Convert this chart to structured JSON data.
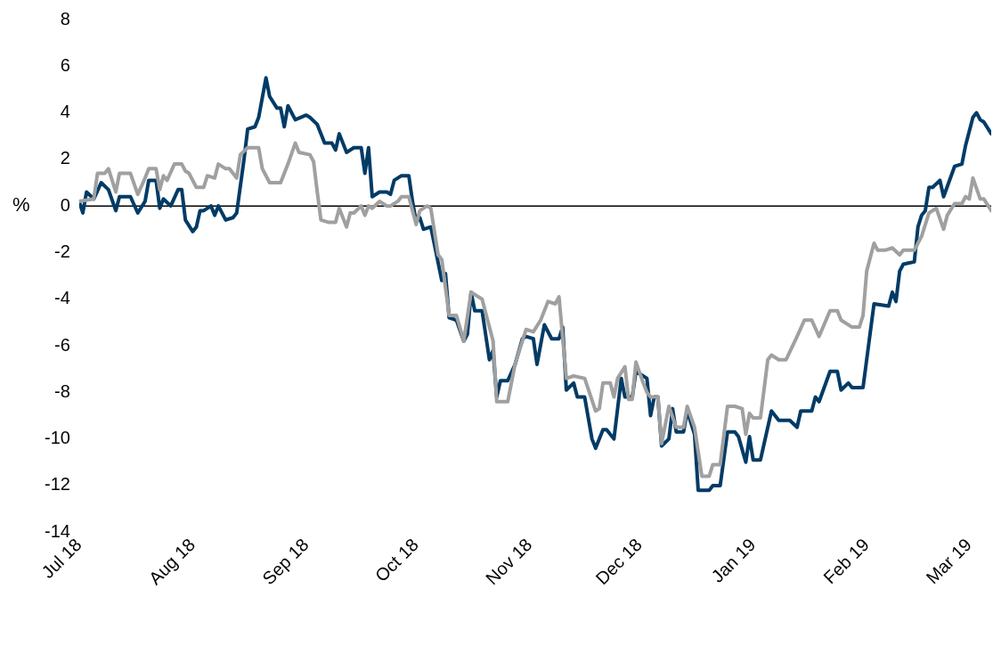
{
  "chart_data": {
    "type": "line",
    "ylabel": "%",
    "xlim": [
      "2018-07-01",
      "2019-03-07"
    ],
    "xticks": [
      {
        "value": "2018-07-01",
        "label": "Jul 18"
      },
      {
        "value": "2018-08-01",
        "label": "Aug 18"
      },
      {
        "value": "2018-09-01",
        "label": "Sep 18"
      },
      {
        "value": "2018-10-01",
        "label": "Oct 18"
      },
      {
        "value": "2018-11-01",
        "label": "Nov 18"
      },
      {
        "value": "2018-12-01",
        "label": "Dec 18"
      },
      {
        "value": "2019-01-01",
        "label": "Jan 19"
      },
      {
        "value": "2019-02-01",
        "label": "Feb 19"
      },
      {
        "value": "2019-03-01",
        "label": "Mar 19"
      }
    ],
    "ylim": [
      -14,
      8
    ],
    "yticks": [
      -14,
      -12,
      -10,
      -8,
      -6,
      -4,
      -2,
      0,
      2,
      4,
      6,
      8
    ],
    "grid": false,
    "legend": false,
    "marker": "none",
    "line_style": "solid",
    "ref_lines": [
      {
        "axis": "y",
        "value": 0,
        "color": "#000000"
      }
    ],
    "series": [
      {
        "color": "#a0a0a0",
        "x": [
          "2018-07-01",
          "2018-07-05",
          "2018-07-06",
          "2018-07-08",
          "2018-07-09",
          "2018-07-11",
          "2018-07-12",
          "2018-07-15",
          "2018-07-17",
          "2018-07-19",
          "2018-07-20",
          "2018-07-22",
          "2018-07-23",
          "2018-07-24",
          "2018-07-25",
          "2018-07-27",
          "2018-07-29",
          "2018-07-30",
          "2018-07-31",
          "2018-08-02",
          "2018-08-04",
          "2018-08-05",
          "2018-08-07",
          "2018-08-08",
          "2018-08-10",
          "2018-08-11",
          "2018-08-13",
          "2018-08-14",
          "2018-08-16",
          "2018-08-19",
          "2018-08-20",
          "2018-08-22",
          "2018-08-25",
          "2018-08-27",
          "2018-08-29",
          "2018-08-30",
          "2018-09-02",
          "2018-09-03",
          "2018-09-04",
          "2018-09-05",
          "2018-09-07",
          "2018-09-09",
          "2018-09-10",
          "2018-09-12",
          "2018-09-13",
          "2018-09-14",
          "2018-09-16",
          "2018-09-17",
          "2018-09-18",
          "2018-09-19",
          "2018-09-21",
          "2018-09-23",
          "2018-09-24",
          "2018-09-26",
          "2018-09-27",
          "2018-09-29",
          "2018-10-01",
          "2018-10-02",
          "2018-10-04",
          "2018-10-05",
          "2018-10-07",
          "2018-10-08",
          "2018-10-10",
          "2018-10-12",
          "2018-10-14",
          "2018-10-16",
          "2018-10-19",
          "2018-10-22",
          "2018-10-23",
          "2018-10-26",
          "2018-10-28",
          "2018-10-30",
          "2018-10-31",
          "2018-11-02",
          "2018-11-04",
          "2018-11-06",
          "2018-11-08",
          "2018-11-09",
          "2018-11-11",
          "2018-11-13",
          "2018-11-16",
          "2018-11-19",
          "2018-11-20",
          "2018-11-21",
          "2018-11-23",
          "2018-11-24",
          "2018-11-25",
          "2018-11-27",
          "2018-11-28",
          "2018-11-29",
          "2018-11-30",
          "2018-12-02",
          "2018-12-03",
          "2018-12-04",
          "2018-12-06",
          "2018-12-07",
          "2018-12-09",
          "2018-12-11",
          "2018-12-13",
          "2018-12-14",
          "2018-12-16",
          "2018-12-18",
          "2018-12-20",
          "2018-12-21",
          "2018-12-23",
          "2018-12-25",
          "2018-12-27",
          "2018-12-29",
          "2018-12-30",
          "2018-12-31",
          "2019-01-01",
          "2019-01-03",
          "2019-01-05",
          "2019-01-06",
          "2019-01-08",
          "2019-01-10",
          "2019-01-13",
          "2019-01-15",
          "2019-01-17",
          "2019-01-19",
          "2019-01-22",
          "2019-01-24",
          "2019-01-25",
          "2019-01-28",
          "2019-01-30",
          "2019-01-31",
          "2019-02-01",
          "2019-02-03",
          "2019-02-04",
          "2019-02-06",
          "2019-02-08",
          "2019-02-10",
          "2019-02-11",
          "2019-02-14",
          "2019-02-16",
          "2019-02-18",
          "2019-02-20",
          "2019-02-22",
          "2019-02-23",
          "2019-02-25",
          "2019-02-27",
          "2019-02-28",
          "2019-03-01",
          "2019-03-02",
          "2019-03-04",
          "2019-03-05",
          "2019-03-07"
        ],
        "values": [
          0.2,
          0.3,
          1.4,
          1.4,
          1.6,
          0.6,
          1.4,
          1.4,
          0.5,
          1.2,
          1.6,
          1.6,
          0.7,
          1.3,
          1.1,
          1.8,
          1.8,
          1.5,
          1.4,
          0.8,
          0.8,
          1.3,
          1.2,
          1.8,
          1.6,
          1.6,
          1.2,
          2.2,
          2.5,
          2.5,
          1.6,
          1.0,
          1.0,
          1.8,
          2.7,
          2.3,
          2.2,
          1.9,
          0.6,
          -0.6,
          -0.7,
          -0.7,
          -0.1,
          -0.9,
          -0.3,
          -0.3,
          0.0,
          -0.4,
          0.0,
          -0.1,
          0.2,
          0.0,
          0.0,
          0.2,
          0.4,
          0.4,
          -0.8,
          -0.2,
          0.0,
          -0.1,
          -2.1,
          -2.3,
          -4.7,
          -4.7,
          -5.8,
          -3.7,
          -4.0,
          -5.8,
          -8.4,
          -8.4,
          -6.8,
          -5.8,
          -5.3,
          -5.4,
          -4.9,
          -4.1,
          -4.2,
          -3.9,
          -7.4,
          -7.3,
          -7.4,
          -8.8,
          -8.7,
          -7.6,
          -7.6,
          -8.2,
          -7.4,
          -6.9,
          -8.3,
          -8.3,
          -6.7,
          -7.6,
          -8.0,
          -8.2,
          -8.2,
          -10.2,
          -8.6,
          -9.5,
          -9.5,
          -8.6,
          -9.5,
          -11.6,
          -11.6,
          -11.1,
          -11.1,
          -8.6,
          -8.6,
          -8.7,
          -9.8,
          -8.9,
          -9.1,
          -9.1,
          -6.6,
          -6.4,
          -6.6,
          -6.6,
          -5.6,
          -4.9,
          -4.9,
          -5.6,
          -4.5,
          -4.5,
          -4.9,
          -5.2,
          -5.2,
          -4.7,
          -2.8,
          -1.6,
          -1.9,
          -1.9,
          -1.8,
          -2.1,
          -1.9,
          -1.9,
          -1.3,
          -0.3,
          -0.1,
          -1.0,
          -0.4,
          0.1,
          0.1,
          0.4,
          0.3,
          1.2,
          0.3,
          0.3,
          -0.2
        ]
      },
      {
        "color": "#003b66",
        "x": [
          "2018-07-01",
          "2018-07-02",
          "2018-07-03",
          "2018-07-05",
          "2018-07-07",
          "2018-07-09",
          "2018-07-11",
          "2018-07-12",
          "2018-07-15",
          "2018-07-17",
          "2018-07-19",
          "2018-07-20",
          "2018-07-22",
          "2018-07-23",
          "2018-07-24",
          "2018-07-26",
          "2018-07-28",
          "2018-07-29",
          "2018-07-30",
          "2018-08-01",
          "2018-08-02",
          "2018-08-03",
          "2018-08-04",
          "2018-08-06",
          "2018-08-07",
          "2018-08-08",
          "2018-08-10",
          "2018-08-12",
          "2018-08-13",
          "2018-08-15",
          "2018-08-16",
          "2018-08-18",
          "2018-08-19",
          "2018-08-21",
          "2018-08-22",
          "2018-08-24",
          "2018-08-25",
          "2018-08-26",
          "2018-08-27",
          "2018-08-29",
          "2018-09-01",
          "2018-09-02",
          "2018-09-04",
          "2018-09-06",
          "2018-09-08",
          "2018-09-09",
          "2018-09-10",
          "2018-09-12",
          "2018-09-14",
          "2018-09-16",
          "2018-09-17",
          "2018-09-18",
          "2018-09-19",
          "2018-09-21",
          "2018-09-23",
          "2018-09-24",
          "2018-09-25",
          "2018-09-27",
          "2018-09-29",
          "2018-09-30",
          "2018-10-01",
          "2018-10-02",
          "2018-10-03",
          "2018-10-05",
          "2018-10-08",
          "2018-10-09",
          "2018-10-10",
          "2018-10-12",
          "2018-10-14",
          "2018-10-15",
          "2018-10-16",
          "2018-10-17",
          "2018-10-19",
          "2018-10-21",
          "2018-10-22",
          "2018-10-23",
          "2018-10-24",
          "2018-10-26",
          "2018-10-28",
          "2018-10-30",
          "2018-10-31",
          "2018-11-02",
          "2018-11-03",
          "2018-11-05",
          "2018-11-07",
          "2018-11-09",
          "2018-11-10",
          "2018-11-11",
          "2018-11-13",
          "2018-11-14",
          "2018-11-16",
          "2018-11-18",
          "2018-11-19",
          "2018-11-21",
          "2018-11-22",
          "2018-11-24",
          "2018-11-25",
          "2018-11-26",
          "2018-11-27",
          "2018-11-29",
          "2018-11-30",
          "2018-12-03",
          "2018-12-04",
          "2018-12-05",
          "2018-12-06",
          "2018-12-07",
          "2018-12-09",
          "2018-12-10",
          "2018-12-11",
          "2018-12-13",
          "2018-12-14",
          "2018-12-16",
          "2018-12-17",
          "2018-12-20",
          "2018-12-21",
          "2018-12-23",
          "2018-12-25",
          "2018-12-27",
          "2018-12-28",
          "2018-12-30",
          "2018-12-31",
          "2019-01-01",
          "2019-01-03",
          "2019-01-06",
          "2019-01-08",
          "2019-01-11",
          "2019-01-13",
          "2019-01-14",
          "2019-01-17",
          "2019-01-18",
          "2019-01-19",
          "2019-01-22",
          "2019-01-24",
          "2019-01-25",
          "2019-01-27",
          "2019-01-28",
          "2019-01-31",
          "2019-02-03",
          "2019-02-07",
          "2019-02-08",
          "2019-02-09",
          "2019-02-10",
          "2019-02-11",
          "2019-02-14",
          "2019-02-15",
          "2019-02-16",
          "2019-02-17",
          "2019-02-18",
          "2019-02-19",
          "2019-02-21",
          "2019-02-22",
          "2019-02-25",
          "2019-02-27",
          "2019-02-28",
          "2019-03-02",
          "2019-03-03",
          "2019-03-04",
          "2019-03-05",
          "2019-03-07"
        ],
        "values": [
          0.2,
          -0.3,
          0.6,
          0.3,
          1.0,
          0.7,
          -0.2,
          0.4,
          0.4,
          -0.3,
          0.2,
          1.1,
          1.1,
          -0.1,
          0.3,
          0.0,
          0.7,
          0.7,
          -0.6,
          -1.1,
          -0.9,
          -0.2,
          -0.2,
          0.0,
          -0.4,
          0.0,
          -0.6,
          -0.5,
          -0.3,
          2.0,
          3.3,
          3.4,
          3.8,
          5.5,
          4.7,
          4.2,
          4.2,
          3.4,
          4.3,
          3.7,
          3.9,
          3.8,
          3.5,
          2.7,
          2.7,
          2.4,
          3.1,
          2.3,
          2.5,
          2.5,
          1.4,
          2.5,
          0.4,
          0.6,
          0.6,
          0.5,
          1.1,
          1.3,
          1.3,
          0.2,
          -0.7,
          -0.5,
          -1.0,
          -0.9,
          -3.2,
          -2.9,
          -4.8,
          -4.9,
          -5.8,
          -5.5,
          -3.7,
          -4.5,
          -4.5,
          -6.6,
          -6.2,
          -8.2,
          -7.5,
          -7.5,
          -6.8,
          -5.7,
          -5.6,
          -5.7,
          -6.8,
          -5.1,
          -5.7,
          -5.7,
          -5.2,
          -7.9,
          -7.6,
          -8.2,
          -8.2,
          -10.0,
          -10.4,
          -9.6,
          -9.6,
          -10.0,
          -8.7,
          -7.4,
          -8.2,
          -8.2,
          -7.1,
          -7.4,
          -9.0,
          -8.2,
          -8.2,
          -10.3,
          -10.0,
          -8.7,
          -9.7,
          -9.7,
          -8.8,
          -9.8,
          -12.2,
          -12.2,
          -12.0,
          -12.0,
          -9.7,
          -9.7,
          -9.9,
          -11.0,
          -9.9,
          -10.9,
          -10.9,
          -8.8,
          -9.2,
          -9.2,
          -9.5,
          -8.8,
          -8.8,
          -8.2,
          -8.4,
          -7.1,
          -7.1,
          -7.9,
          -7.6,
          -7.8,
          -7.8,
          -4.2,
          -4.3,
          -3.7,
          -4.1,
          -2.8,
          -2.5,
          -2.4,
          -0.9,
          -0.4,
          -0.2,
          0.8,
          0.8,
          1.1,
          0.4,
          1.7,
          1.8,
          2.6,
          3.8,
          4.0,
          3.7,
          3.6,
          3.1
        ]
      }
    ]
  }
}
